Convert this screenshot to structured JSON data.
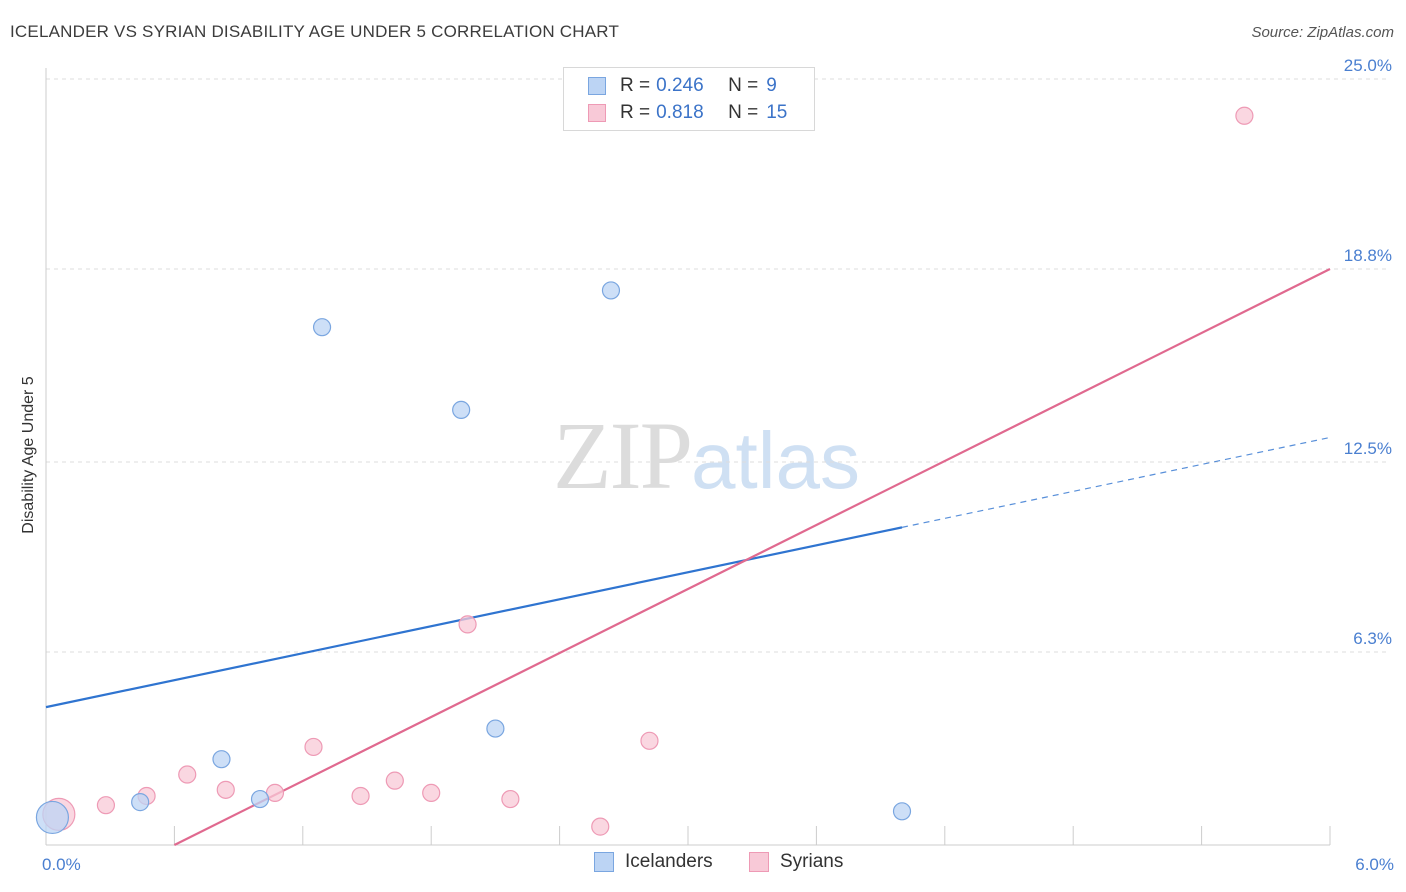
{
  "header": {
    "title": "ICELANDER VS SYRIAN DISABILITY AGE UNDER 5 CORRELATION CHART",
    "source": "Source: ZipAtlas.com"
  },
  "watermark": {
    "zip": "ZIP",
    "atlas": "atlas"
  },
  "legend": {
    "rows": [
      {
        "r_label": "R =",
        "r_value": "0.246",
        "n_label": "N =",
        "n_value": "9"
      },
      {
        "r_label": "R =",
        "r_value": "0.818",
        "n_label": "N =",
        "n_value": "15"
      }
    ]
  },
  "colors": {
    "icelanders_fill": "#bcd4f4",
    "icelanders_stroke": "#7aa6e0",
    "icelanders_line": "#2f74d0",
    "syrians_fill": "#f8c9d7",
    "syrians_stroke": "#ee9ab5",
    "syrians_line": "#e0698f",
    "grid": "#dddddd",
    "axis_text": "#4a7fd0"
  },
  "chart_data": {
    "type": "scatter",
    "title": "ICELANDER VS SYRIAN DISABILITY AGE UNDER 5 CORRELATION CHART",
    "xlabel": "",
    "ylabel": "Disability Age Under 5",
    "xlim": [
      0.0,
      6.0
    ],
    "ylim": [
      0.0,
      25.0
    ],
    "x_tick_labels": [
      {
        "value": 0.0,
        "label": "0.0%"
      },
      {
        "value": 6.0,
        "label": "6.0%"
      }
    ],
    "y_tick_labels": [
      {
        "value": 25.0,
        "label": "25.0%"
      },
      {
        "value": 18.8,
        "label": "18.8%"
      },
      {
        "value": 12.5,
        "label": "12.5%"
      },
      {
        "value": 6.3,
        "label": "6.3%"
      }
    ],
    "grid": true,
    "legend_position": "top-center",
    "series": [
      {
        "name": "Icelanders",
        "color": "#7aa6e0",
        "points": [
          {
            "x": 0.03,
            "y": 0.9,
            "size": "large"
          },
          {
            "x": 0.44,
            "y": 1.4,
            "size": "normal"
          },
          {
            "x": 0.82,
            "y": 2.8,
            "size": "normal"
          },
          {
            "x": 1.0,
            "y": 1.5,
            "size": "normal"
          },
          {
            "x": 1.29,
            "y": 16.9,
            "size": "normal"
          },
          {
            "x": 1.94,
            "y": 14.2,
            "size": "normal"
          },
          {
            "x": 2.1,
            "y": 3.8,
            "size": "normal"
          },
          {
            "x": 2.64,
            "y": 18.1,
            "size": "normal"
          },
          {
            "x": 4.0,
            "y": 1.1,
            "size": "normal"
          }
        ],
        "trend": {
          "x_start": 0.0,
          "y_start": 4.5,
          "x_solid_end": 4.0,
          "x_dashed_end": 6.0,
          "y_dashed_end": 13.3
        }
      },
      {
        "name": "Syrians",
        "color": "#ee9ab5",
        "points": [
          {
            "x": 0.06,
            "y": 1.0,
            "size": "large"
          },
          {
            "x": 0.28,
            "y": 1.3,
            "size": "normal"
          },
          {
            "x": 0.47,
            "y": 1.6,
            "size": "normal"
          },
          {
            "x": 0.66,
            "y": 2.3,
            "size": "normal"
          },
          {
            "x": 0.84,
            "y": 1.8,
            "size": "normal"
          },
          {
            "x": 1.07,
            "y": 1.7,
            "size": "normal"
          },
          {
            "x": 1.25,
            "y": 3.2,
            "size": "normal"
          },
          {
            "x": 1.47,
            "y": 1.6,
            "size": "normal"
          },
          {
            "x": 1.63,
            "y": 2.1,
            "size": "normal"
          },
          {
            "x": 1.8,
            "y": 1.7,
            "size": "normal"
          },
          {
            "x": 1.97,
            "y": 7.2,
            "size": "normal"
          },
          {
            "x": 2.17,
            "y": 1.5,
            "size": "normal"
          },
          {
            "x": 2.59,
            "y": 0.6,
            "size": "normal"
          },
          {
            "x": 2.82,
            "y": 3.4,
            "size": "normal"
          },
          {
            "x": 5.6,
            "y": 23.8,
            "size": "normal"
          }
        ],
        "trend": {
          "x_start": 0.6,
          "y_start": 0.0,
          "x_end": 6.0,
          "y_end": 18.8
        }
      }
    ]
  }
}
